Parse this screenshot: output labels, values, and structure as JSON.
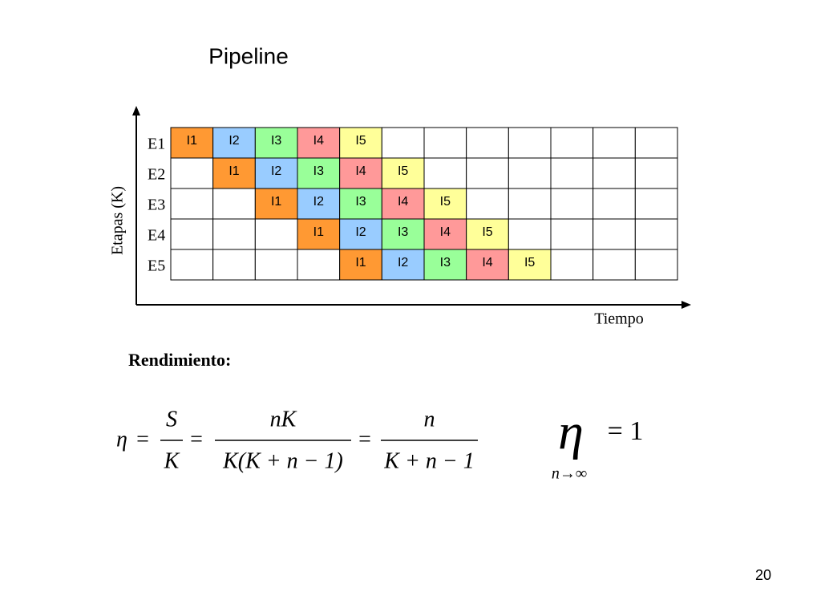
{
  "title": "Pipeline",
  "diagram": {
    "y_axis_label": "Etapas (K)",
    "x_axis_label": "Tiempo",
    "stages": [
      "E1",
      "E2",
      "E3",
      "E4",
      "E5"
    ],
    "rows": [
      [
        {
          "label": "I1",
          "color": "#ff9933"
        },
        {
          "label": "I2",
          "color": "#99ccff"
        },
        {
          "label": "I3",
          "color": "#99ff99"
        },
        {
          "label": "I4",
          "color": "#ff9999"
        },
        {
          "label": "I5",
          "color": "#ffff99"
        },
        null,
        null,
        null,
        null,
        null,
        null,
        null
      ],
      [
        null,
        {
          "label": "I1",
          "color": "#ff9933"
        },
        {
          "label": "I2",
          "color": "#99ccff"
        },
        {
          "label": "I3",
          "color": "#99ff99"
        },
        {
          "label": "I4",
          "color": "#ff9999"
        },
        {
          "label": "I5",
          "color": "#ffff99"
        },
        null,
        null,
        null,
        null,
        null,
        null
      ],
      [
        null,
        null,
        {
          "label": "I1",
          "color": "#ff9933"
        },
        {
          "label": "I2",
          "color": "#99ccff"
        },
        {
          "label": "I3",
          "color": "#99ff99"
        },
        {
          "label": "I4",
          "color": "#ff9999"
        },
        {
          "label": "I5",
          "color": "#ffff99"
        },
        null,
        null,
        null,
        null,
        null
      ],
      [
        null,
        null,
        null,
        {
          "label": "I1",
          "color": "#ff9933"
        },
        {
          "label": "I2",
          "color": "#99ccff"
        },
        {
          "label": "I3",
          "color": "#99ff99"
        },
        {
          "label": "I4",
          "color": "#ff9999"
        },
        {
          "label": "I5",
          "color": "#ffff99"
        },
        null,
        null,
        null,
        null
      ],
      [
        null,
        null,
        null,
        null,
        {
          "label": "I1",
          "color": "#ff9933"
        },
        {
          "label": "I2",
          "color": "#99ccff"
        },
        {
          "label": "I3",
          "color": "#99ff99"
        },
        {
          "label": "I4",
          "color": "#ff9999"
        },
        {
          "label": "I5",
          "color": "#ffff99"
        },
        null,
        null,
        null
      ]
    ]
  },
  "section_label": "Rendimiento:",
  "formula": {
    "lhs": "η",
    "equals": "=",
    "fractions": [
      {
        "num": "S",
        "den": "K"
      },
      {
        "num": "nK",
        "den": "K(K + n − 1)"
      },
      {
        "num": "n",
        "den": "K + n − 1"
      }
    ]
  },
  "limit": {
    "symbol": "η",
    "rhs": "= 1",
    "subscript": "n→∞"
  },
  "page_number": "20"
}
